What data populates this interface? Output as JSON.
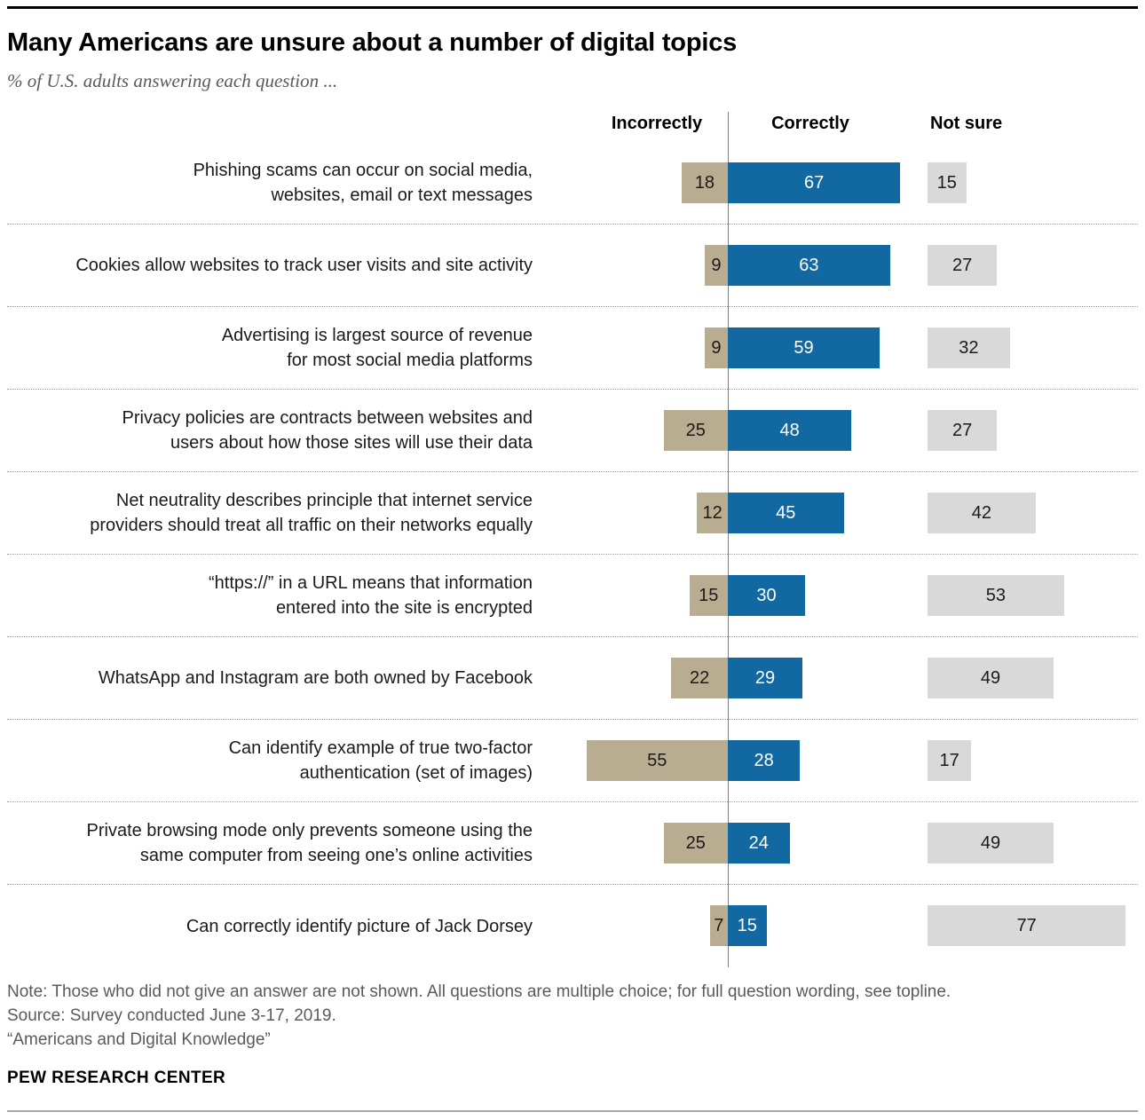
{
  "header": {
    "title": "Many Americans are unsure about a number of digital topics",
    "subtitle": "% of U.S. adults answering each question ..."
  },
  "chart_data": {
    "type": "bar",
    "orientation": "horizontal-diverging",
    "title": "Many Americans are unsure about a number of digital topics",
    "unit": "percent of U.S. adults",
    "value_range": [
      0,
      100
    ],
    "grid": "dotted row separators",
    "column_headers": [
      "Incorrectly",
      "Correctly",
      "Not sure"
    ],
    "categories": [
      "Phishing scams can occur on social media,\nwebsites, email or text messages",
      "Cookies allow websites to track user visits and site activity",
      "Advertising is largest source of revenue\nfor most social media platforms",
      "Privacy policies are contracts between websites and\nusers about how those sites will use their data",
      "Net neutrality describes principle that internet service\nproviders should treat all traffic on their networks equally",
      "“https://” in a URL means that information\nentered into the site is encrypted",
      "WhatsApp and Instagram are both owned by Facebook",
      "Can identify example of true two-factor\nauthentication (set of images)",
      "Private browsing mode only prevents someone using the\nsame computer from seeing one’s online activities",
      "Can correctly identify picture of Jack Dorsey"
    ],
    "series": [
      {
        "name": "Incorrectly",
        "color": "#b8ad90",
        "values": [
          18,
          9,
          9,
          25,
          12,
          15,
          22,
          55,
          25,
          7
        ]
      },
      {
        "name": "Correctly",
        "color": "#1268a0",
        "values": [
          67,
          63,
          59,
          48,
          45,
          30,
          29,
          28,
          24,
          15
        ]
      },
      {
        "name": "Not sure",
        "color": "#d9d9d9",
        "values": [
          15,
          27,
          32,
          27,
          42,
          53,
          49,
          17,
          49,
          77
        ]
      }
    ]
  },
  "footer": {
    "note": "Note: Those who did not give an answer are not shown. All questions are multiple choice; for full question wording, see topline.",
    "source": "Source: Survey conducted June 3-17, 2019.",
    "report": "“Americans and Digital Knowledge”",
    "brand": "PEW RESEARCH CENTER"
  }
}
